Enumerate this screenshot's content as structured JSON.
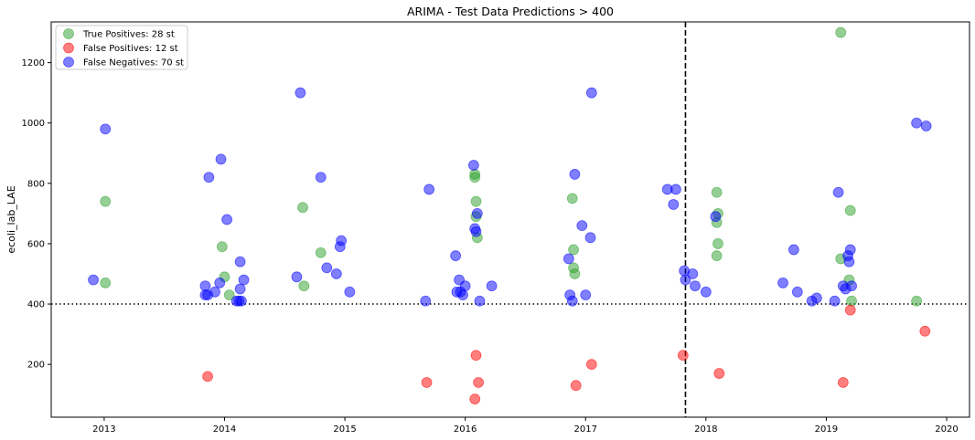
{
  "chart_data": {
    "type": "scatter",
    "title": "ARIMA - Test Data Predictions > 400",
    "xlabel": "",
    "ylabel": "ecoli_lab_LAE",
    "xlim": [
      2012.56,
      2020.19
    ],
    "ylim": [
      25,
      1335
    ],
    "x_ticks": [
      2013,
      2014,
      2015,
      2016,
      2017,
      2018,
      2019,
      2020
    ],
    "y_ticks": [
      200,
      400,
      600,
      800,
      1000,
      1200
    ],
    "grid": false,
    "legend_position": "top-left",
    "threshold_y": 400,
    "split_x": 2017.83,
    "series": [
      {
        "name": "True Positives: 28 st",
        "color": "#2ca02c",
        "points": [
          [
            2013.01,
            740
          ],
          [
            2013.01,
            470
          ],
          [
            2013.98,
            590
          ],
          [
            2014.0,
            490
          ],
          [
            2014.04,
            430
          ],
          [
            2014.65,
            720
          ],
          [
            2014.66,
            460
          ],
          [
            2014.8,
            570
          ],
          [
            2016.08,
            830
          ],
          [
            2016.08,
            820
          ],
          [
            2016.09,
            740
          ],
          [
            2016.09,
            690
          ],
          [
            2016.1,
            620
          ],
          [
            2016.89,
            750
          ],
          [
            2016.9,
            580
          ],
          [
            2016.9,
            520
          ],
          [
            2016.91,
            500
          ],
          [
            2018.09,
            770
          ],
          [
            2018.1,
            700
          ],
          [
            2018.09,
            670
          ],
          [
            2018.1,
            600
          ],
          [
            2018.09,
            560
          ],
          [
            2019.12,
            1300
          ],
          [
            2019.12,
            550
          ],
          [
            2019.2,
            710
          ],
          [
            2019.19,
            480
          ],
          [
            2019.21,
            410
          ],
          [
            2019.75,
            410
          ]
        ]
      },
      {
        "name": "False Positives: 12 st",
        "color": "#ff0000",
        "points": [
          [
            2013.86,
            160
          ],
          [
            2015.68,
            140
          ],
          [
            2016.08,
            85
          ],
          [
            2016.09,
            230
          ],
          [
            2016.11,
            140
          ],
          [
            2016.92,
            130
          ],
          [
            2017.05,
            200
          ],
          [
            2017.81,
            230
          ],
          [
            2018.11,
            170
          ],
          [
            2019.14,
            140
          ],
          [
            2019.2,
            380
          ],
          [
            2019.82,
            310
          ]
        ]
      },
      {
        "name": "False Negatives: 70 st",
        "color": "#0000ff",
        "points": [
          [
            2012.91,
            480
          ],
          [
            2013.01,
            980
          ],
          [
            2013.84,
            460
          ],
          [
            2013.84,
            430
          ],
          [
            2013.86,
            430
          ],
          [
            2013.87,
            820
          ],
          [
            2013.92,
            440
          ],
          [
            2013.96,
            470
          ],
          [
            2013.97,
            880
          ],
          [
            2014.02,
            680
          ],
          [
            2014.1,
            410
          ],
          [
            2014.12,
            410
          ],
          [
            2014.13,
            540
          ],
          [
            2014.13,
            450
          ],
          [
            2014.14,
            410
          ],
          [
            2014.16,
            480
          ],
          [
            2014.6,
            490
          ],
          [
            2014.63,
            1100
          ],
          [
            2014.8,
            820
          ],
          [
            2014.85,
            520
          ],
          [
            2014.93,
            500
          ],
          [
            2014.96,
            590
          ],
          [
            2014.97,
            610
          ],
          [
            2015.04,
            440
          ],
          [
            2015.67,
            410
          ],
          [
            2015.7,
            780
          ],
          [
            2015.92,
            560
          ],
          [
            2015.93,
            440
          ],
          [
            2015.95,
            480
          ],
          [
            2015.96,
            440
          ],
          [
            2015.98,
            430
          ],
          [
            2016.0,
            460
          ],
          [
            2016.07,
            860
          ],
          [
            2016.08,
            650
          ],
          [
            2016.09,
            640
          ],
          [
            2016.1,
            700
          ],
          [
            2016.12,
            410
          ],
          [
            2016.22,
            460
          ],
          [
            2016.86,
            550
          ],
          [
            2016.87,
            430
          ],
          [
            2016.89,
            410
          ],
          [
            2016.91,
            830
          ],
          [
            2016.97,
            660
          ],
          [
            2017.0,
            430
          ],
          [
            2017.04,
            620
          ],
          [
            2017.05,
            1100
          ],
          [
            2017.68,
            780
          ],
          [
            2017.73,
            730
          ],
          [
            2017.75,
            780
          ],
          [
            2017.82,
            510
          ],
          [
            2017.83,
            480
          ],
          [
            2017.89,
            500
          ],
          [
            2017.91,
            460
          ],
          [
            2018.0,
            440
          ],
          [
            2018.08,
            690
          ],
          [
            2018.64,
            470
          ],
          [
            2018.73,
            580
          ],
          [
            2018.76,
            440
          ],
          [
            2018.88,
            410
          ],
          [
            2018.92,
            420
          ],
          [
            2019.07,
            410
          ],
          [
            2019.1,
            770
          ],
          [
            2019.14,
            460
          ],
          [
            2019.16,
            450
          ],
          [
            2019.18,
            560
          ],
          [
            2019.19,
            540
          ],
          [
            2019.2,
            580
          ],
          [
            2019.21,
            460
          ],
          [
            2019.75,
            1000
          ],
          [
            2019.83,
            990
          ]
        ]
      }
    ]
  }
}
